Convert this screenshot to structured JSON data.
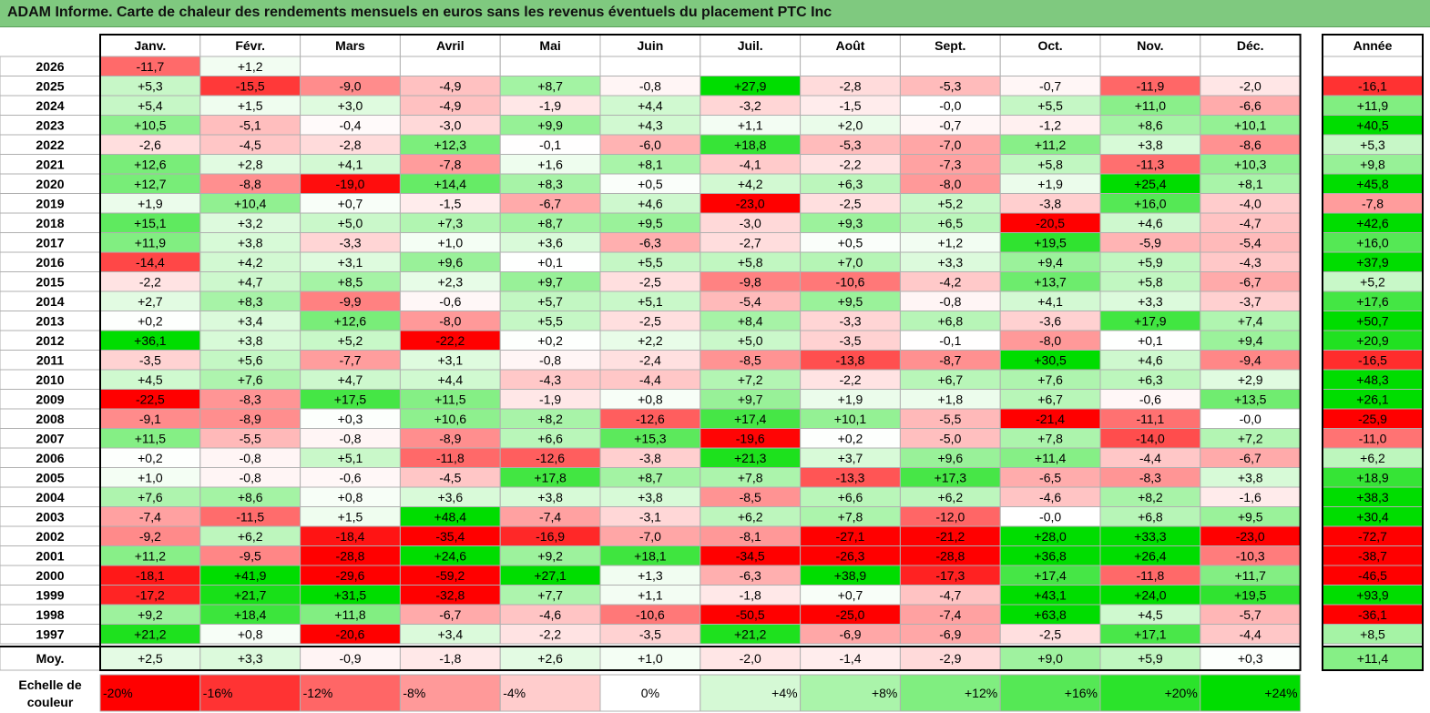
{
  "title": "ADAM Informe. Carte de chaleur des rendements mensuels en euros sans les revenus éventuels du placement PTC Inc",
  "chart_data": {
    "type": "heatmap",
    "months": [
      "Janv.",
      "Févr.",
      "Mars",
      "Avril",
      "Mai",
      "Juin",
      "Juil.",
      "Août",
      "Sept.",
      "Oct.",
      "Nov.",
      "Déc."
    ],
    "year_header": "Année",
    "avg_label": "Moy.",
    "scale_label": [
      "Echelle de",
      "couleur"
    ],
    "rows": [
      {
        "year": "2026",
        "months": [
          "-11,7",
          "+1,2",
          "",
          "",
          "",
          "",
          "",
          "",
          "",
          "",
          "",
          ""
        ],
        "annual": ""
      },
      {
        "year": "2025",
        "months": [
          "+5,3",
          "-15,5",
          "-9,0",
          "-4,9",
          "+8,7",
          "-0,8",
          "+27,9",
          "-2,8",
          "-5,3",
          "-0,7",
          "-11,9",
          "-2,0"
        ],
        "annual": "-16,1"
      },
      {
        "year": "2024",
        "months": [
          "+5,4",
          "+1,5",
          "+3,0",
          "-4,9",
          "-1,9",
          "+4,4",
          "-3,2",
          "-1,5",
          "-0,0",
          "+5,5",
          "+11,0",
          "-6,6"
        ],
        "annual": "+11,9"
      },
      {
        "year": "2023",
        "months": [
          "+10,5",
          "-5,1",
          "-0,4",
          "-3,0",
          "+9,9",
          "+4,3",
          "+1,1",
          "+2,0",
          "-0,7",
          "-1,2",
          "+8,6",
          "+10,1"
        ],
        "annual": "+40,5"
      },
      {
        "year": "2022",
        "months": [
          "-2,6",
          "-4,5",
          "-2,8",
          "+12,3",
          "-0,1",
          "-6,0",
          "+18,8",
          "-5,3",
          "-7,0",
          "+11,2",
          "+3,8",
          "-8,6"
        ],
        "annual": "+5,3"
      },
      {
        "year": "2021",
        "months": [
          "+12,6",
          "+2,8",
          "+4,1",
          "-7,8",
          "+1,6",
          "+8,1",
          "-4,1",
          "-2,2",
          "-7,3",
          "+5,8",
          "-11,3",
          "+10,3"
        ],
        "annual": "+9,8"
      },
      {
        "year": "2020",
        "months": [
          "+12,7",
          "-8,8",
          "-19,0",
          "+14,4",
          "+8,3",
          "+0,5",
          "+4,2",
          "+6,3",
          "-8,0",
          "+1,9",
          "+25,4",
          "+8,1"
        ],
        "annual": "+45,8"
      },
      {
        "year": "2019",
        "months": [
          "+1,9",
          "+10,4",
          "+0,7",
          "-1,5",
          "-6,7",
          "+4,6",
          "-23,0",
          "-2,5",
          "+5,2",
          "-3,8",
          "+16,0",
          "-4,0"
        ],
        "annual": "-7,8"
      },
      {
        "year": "2018",
        "months": [
          "+15,1",
          "+3,2",
          "+5,0",
          "+7,3",
          "+8,7",
          "+9,5",
          "-3,0",
          "+9,3",
          "+6,5",
          "-20,5",
          "+4,6",
          "-4,7"
        ],
        "annual": "+42,6"
      },
      {
        "year": "2017",
        "months": [
          "+11,9",
          "+3,8",
          "-3,3",
          "+1,0",
          "+3,6",
          "-6,3",
          "-2,7",
          "+0,5",
          "+1,2",
          "+19,5",
          "-5,9",
          "-5,4"
        ],
        "annual": "+16,0"
      },
      {
        "year": "2016",
        "months": [
          "-14,4",
          "+4,2",
          "+3,1",
          "+9,6",
          "+0,1",
          "+5,5",
          "+5,8",
          "+7,0",
          "+3,3",
          "+9,4",
          "+5,9",
          "-4,3"
        ],
        "annual": "+37,9"
      },
      {
        "year": "2015",
        "months": [
          "-2,2",
          "+4,7",
          "+8,5",
          "+2,3",
          "+9,7",
          "-2,5",
          "-9,8",
          "-10,6",
          "-4,2",
          "+13,7",
          "+5,8",
          "-6,7"
        ],
        "annual": "+5,2"
      },
      {
        "year": "2014",
        "months": [
          "+2,7",
          "+8,3",
          "-9,9",
          "-0,6",
          "+5,7",
          "+5,1",
          "-5,4",
          "+9,5",
          "-0,8",
          "+4,1",
          "+3,3",
          "-3,7"
        ],
        "annual": "+17,6"
      },
      {
        "year": "2013",
        "months": [
          "+0,2",
          "+3,4",
          "+12,6",
          "-8,0",
          "+5,5",
          "-2,5",
          "+8,4",
          "-3,3",
          "+6,8",
          "-3,6",
          "+17,9",
          "+7,4"
        ],
        "annual": "+50,7"
      },
      {
        "year": "2012",
        "months": [
          "+36,1",
          "+3,8",
          "+5,2",
          "-22,2",
          "+0,2",
          "+2,2",
          "+5,0",
          "-3,5",
          "-0,1",
          "-8,0",
          "+0,1",
          "+9,4"
        ],
        "annual": "+20,9"
      },
      {
        "year": "2011",
        "months": [
          "-3,5",
          "+5,6",
          "-7,7",
          "+3,1",
          "-0,8",
          "-2,4",
          "-8,5",
          "-13,8",
          "-8,7",
          "+30,5",
          "+4,6",
          "-9,4"
        ],
        "annual": "-16,5"
      },
      {
        "year": "2010",
        "months": [
          "+4,5",
          "+7,6",
          "+4,7",
          "+4,4",
          "-4,3",
          "-4,4",
          "+7,2",
          "-2,2",
          "+6,7",
          "+7,6",
          "+6,3",
          "+2,9"
        ],
        "annual": "+48,3"
      },
      {
        "year": "2009",
        "months": [
          "-22,5",
          "-8,3",
          "+17,5",
          "+11,5",
          "-1,9",
          "+0,8",
          "+9,7",
          "+1,9",
          "+1,8",
          "+6,7",
          "-0,6",
          "+13,5"
        ],
        "annual": "+26,1"
      },
      {
        "year": "2008",
        "months": [
          "-9,1",
          "-8,9",
          "+0,3",
          "+10,6",
          "+8,2",
          "-12,6",
          "+17,4",
          "+10,1",
          "-5,5",
          "-21,4",
          "-11,1",
          "-0,0"
        ],
        "annual": "-25,9"
      },
      {
        "year": "2007",
        "months": [
          "+11,5",
          "-5,5",
          "-0,8",
          "-8,9",
          "+6,6",
          "+15,3",
          "-19,6",
          "+0,2",
          "-5,0",
          "+7,8",
          "-14,0",
          "+7,2"
        ],
        "annual": "-11,0"
      },
      {
        "year": "2006",
        "months": [
          "+0,2",
          "-0,8",
          "+5,1",
          "-11,8",
          "-12,6",
          "-3,8",
          "+21,3",
          "+3,7",
          "+9,6",
          "+11,4",
          "-4,4",
          "-6,7"
        ],
        "annual": "+6,2"
      },
      {
        "year": "2005",
        "months": [
          "+1,0",
          "-0,8",
          "-0,6",
          "-4,5",
          "+17,8",
          "+8,7",
          "+7,8",
          "-13,3",
          "+17,3",
          "-6,5",
          "-8,3",
          "+3,8"
        ],
        "annual": "+18,9"
      },
      {
        "year": "2004",
        "months": [
          "+7,6",
          "+8,6",
          "+0,8",
          "+3,6",
          "+3,8",
          "+3,8",
          "-8,5",
          "+6,6",
          "+6,2",
          "-4,6",
          "+8,2",
          "-1,6"
        ],
        "annual": "+38,3"
      },
      {
        "year": "2003",
        "months": [
          "-7,4",
          "-11,5",
          "+1,5",
          "+48,4",
          "-7,4",
          "-3,1",
          "+6,2",
          "+7,8",
          "-12,0",
          "-0,0",
          "+6,8",
          "+9,5"
        ],
        "annual": "+30,4"
      },
      {
        "year": "2002",
        "months": [
          "-9,2",
          "+6,2",
          "-18,4",
          "-35,4",
          "-16,9",
          "-7,0",
          "-8,1",
          "-27,1",
          "-21,2",
          "+28,0",
          "+33,3",
          "-23,0"
        ],
        "annual": "-72,7"
      },
      {
        "year": "2001",
        "months": [
          "+11,2",
          "-9,5",
          "-28,8",
          "+24,6",
          "+9,2",
          "+18,1",
          "-34,5",
          "-26,3",
          "-28,8",
          "+36,8",
          "+26,4",
          "-10,3"
        ],
        "annual": "-38,7"
      },
      {
        "year": "2000",
        "months": [
          "-18,1",
          "+41,9",
          "-29,6",
          "-59,2",
          "+27,1",
          "+1,3",
          "-6,3",
          "+38,9",
          "-17,3",
          "+17,4",
          "-11,8",
          "+11,7"
        ],
        "annual": "-46,5"
      },
      {
        "year": "1999",
        "months": [
          "-17,2",
          "+21,7",
          "+31,5",
          "-32,8",
          "+7,7",
          "+1,1",
          "-1,8",
          "+0,7",
          "-4,7",
          "+43,1",
          "+24,0",
          "+19,5"
        ],
        "annual": "+93,9"
      },
      {
        "year": "1998",
        "months": [
          "+9,2",
          "+18,4",
          "+11,8",
          "-6,7",
          "-4,6",
          "-10,6",
          "-50,5",
          "-25,0",
          "-7,4",
          "+63,8",
          "+4,5",
          "-5,7"
        ],
        "annual": "-36,1"
      },
      {
        "year": "1997",
        "months": [
          "+21,2",
          "+0,8",
          "-20,6",
          "+3,4",
          "-2,2",
          "-3,5",
          "+21,2",
          "-6,9",
          "-6,9",
          "-2,5",
          "+17,1",
          "-4,4"
        ],
        "annual": "+8,5"
      }
    ],
    "averages": {
      "months": [
        "+2,5",
        "+3,3",
        "-0,9",
        "-1,8",
        "+2,6",
        "+1,0",
        "-2,0",
        "-1,4",
        "-2,9",
        "+9,0",
        "+5,9",
        "+0,3"
      ],
      "annual": "+11,4"
    },
    "scale": [
      "-20%",
      "-16%",
      "-12%",
      "-8%",
      "-4%",
      "0%",
      "+4%",
      "+8%",
      "+12%",
      "+16%",
      "+20%",
      "+24%"
    ],
    "colors": {
      "negative": "#ff0000",
      "neutral": "#ffffff",
      "positive": "#00dd00",
      "title_bg": "#7fc97f",
      "grid": "#b0b0b0"
    },
    "color_range": [
      -20,
      24
    ]
  }
}
